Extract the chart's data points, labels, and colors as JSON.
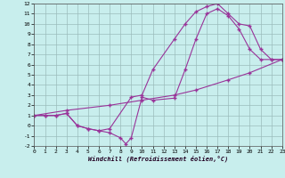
{
  "bg_color": "#c8eeed",
  "grid_color": "#9bbcbc",
  "line_color": "#993399",
  "xlabel": "Windchill (Refroidissement éolien,°C)",
  "xlim": [
    0,
    23
  ],
  "ylim": [
    -2,
    12
  ],
  "xticks": [
    0,
    1,
    2,
    3,
    4,
    5,
    6,
    7,
    8,
    9,
    10,
    11,
    12,
    13,
    14,
    15,
    16,
    17,
    18,
    19,
    20,
    21,
    22,
    23
  ],
  "yticks": [
    -2,
    -1,
    0,
    1,
    2,
    3,
    4,
    5,
    6,
    7,
    8,
    9,
    10,
    11,
    12
  ],
  "curve1_x": [
    0,
    1,
    2,
    3,
    4,
    5,
    6,
    7,
    9,
    10,
    11,
    13,
    14,
    15,
    16,
    17,
    18,
    19,
    20,
    21,
    22,
    23
  ],
  "curve1_y": [
    1,
    1,
    1,
    1.2,
    0.0,
    -0.3,
    -0.5,
    -0.3,
    2.8,
    3.0,
    5.5,
    8.5,
    10.0,
    11.2,
    11.7,
    12.0,
    11.0,
    10.0,
    9.8,
    7.5,
    6.5,
    6.5
  ],
  "curve2_x": [
    0,
    1,
    2,
    3,
    4,
    5,
    6,
    7,
    8,
    8.5,
    9,
    10,
    11,
    13,
    14,
    15,
    16,
    17,
    18,
    19,
    20,
    21,
    22,
    23
  ],
  "curve2_y": [
    1,
    1,
    1,
    1.2,
    0.0,
    -0.3,
    -0.5,
    -0.7,
    -1.2,
    -1.8,
    -1.2,
    2.8,
    2.5,
    2.7,
    5.5,
    8.5,
    11.0,
    11.5,
    10.8,
    9.5,
    7.5,
    6.5,
    6.5,
    6.5
  ],
  "curve3_x": [
    0,
    3,
    7,
    10,
    13,
    15,
    18,
    20,
    23
  ],
  "curve3_y": [
    1,
    1.5,
    2.0,
    2.5,
    3.0,
    3.5,
    4.5,
    5.2,
    6.5
  ]
}
